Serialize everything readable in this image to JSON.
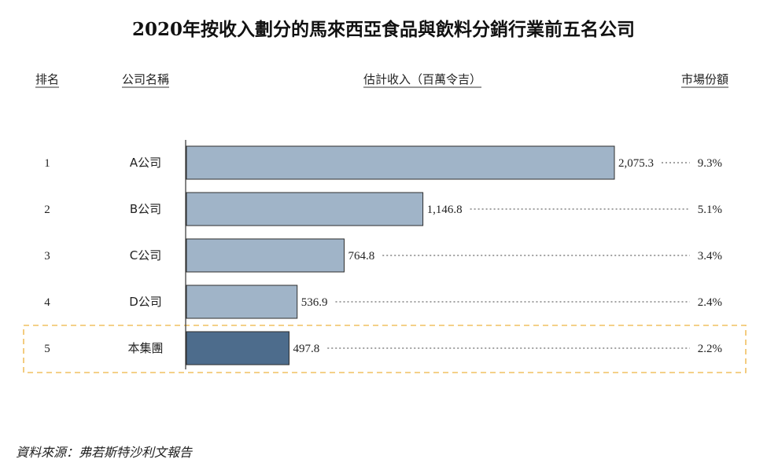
{
  "title": "2020年按收入劃分的馬來西亞食品與飲料分銷行業前五名公司",
  "headers": {
    "rank": "排名",
    "company": "公司名稱",
    "revenue": "估計收入（百萬令吉）",
    "share": "市場份額"
  },
  "source": "資料來源：弗若斯特沙利文報告",
  "colors": {
    "bar": "#a0b4c8",
    "highlight_bar": "#4d6c8c",
    "highlight_box": "#f0c060"
  },
  "chart_data": {
    "type": "bar",
    "orientation": "horizontal",
    "ranks": [
      "1",
      "2",
      "3",
      "4",
      "5"
    ],
    "categories": [
      "A公司",
      "B公司",
      "C公司",
      "D公司",
      "本集團"
    ],
    "values": [
      2075.3,
      1146.8,
      764.8,
      536.9,
      497.8
    ],
    "value_labels": [
      "2,075.3",
      "1,146.8",
      "764.8",
      "536.9",
      "497.8"
    ],
    "shares": [
      "9.3%",
      "5.1%",
      "3.4%",
      "2.4%",
      "2.2%"
    ],
    "highlight_index": 4,
    "xlim": [
      0,
      2075.3
    ],
    "unit": "百萬令吉"
  }
}
